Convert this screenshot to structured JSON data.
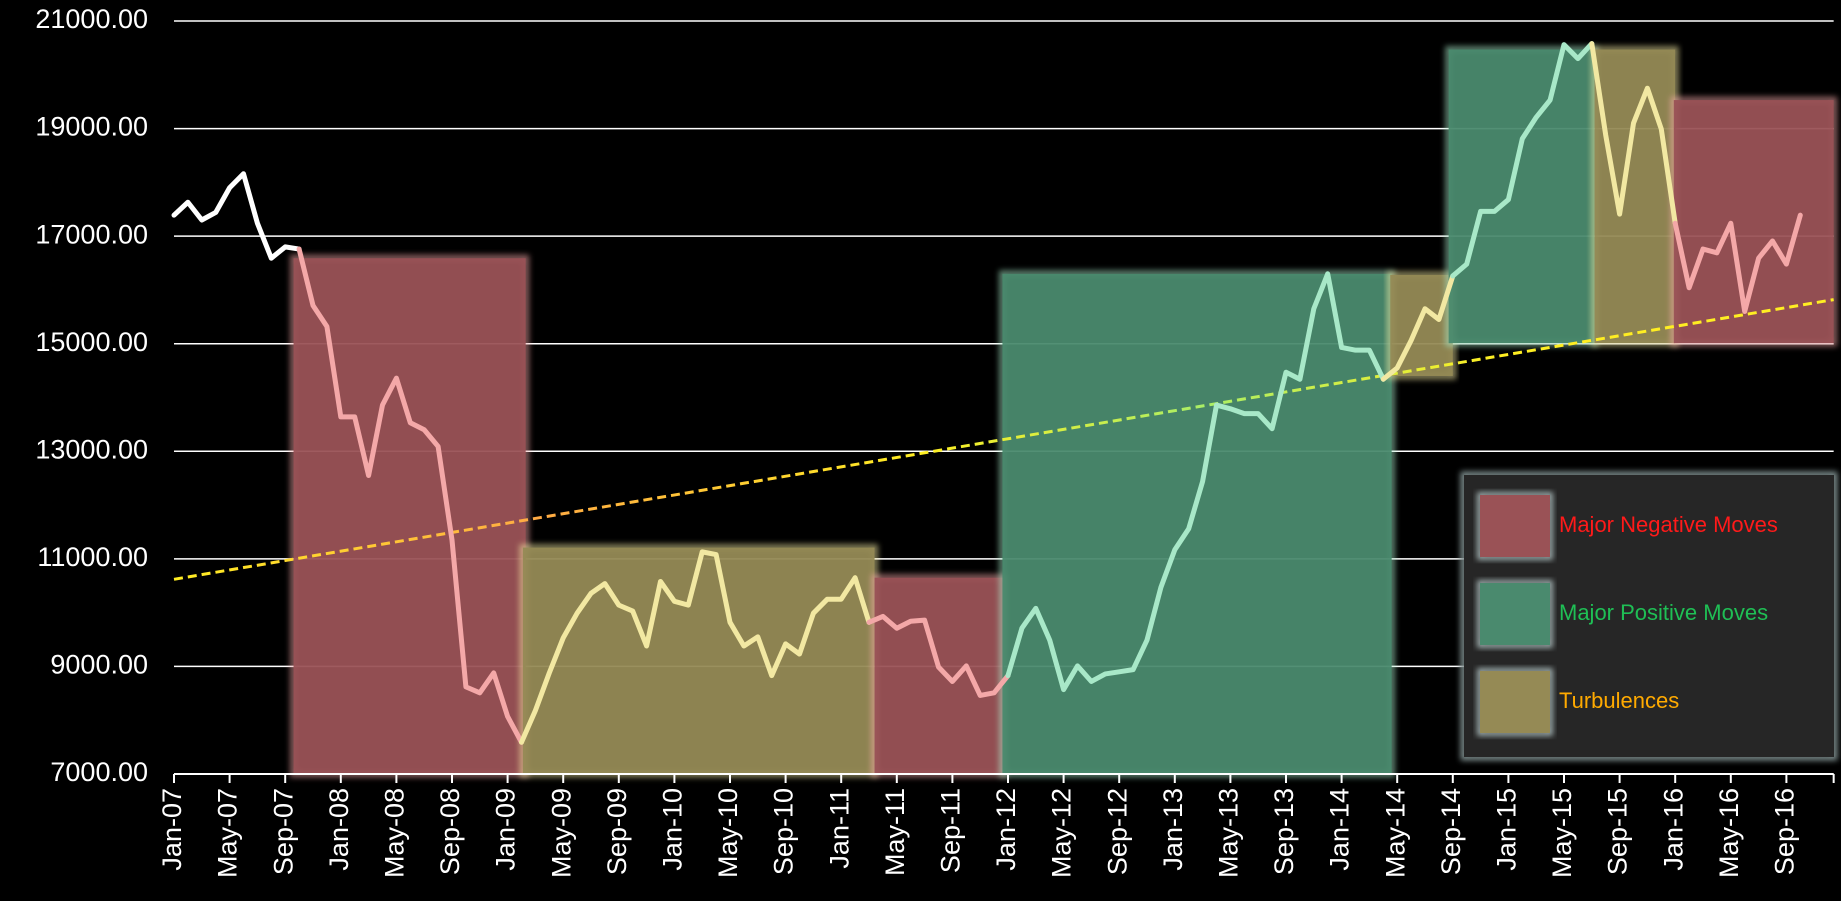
{
  "chart_data": {
    "type": "line",
    "categories": [
      "Jan-07",
      null,
      null,
      null,
      "May-07",
      null,
      null,
      null,
      "Sep-07",
      null,
      null,
      null,
      "Jan-08",
      null,
      null,
      null,
      "May-08",
      null,
      null,
      null,
      "Sep-08",
      null,
      null,
      null,
      "Jan-09",
      null,
      null,
      null,
      "May-09",
      null,
      null,
      null,
      "Sep-09",
      null,
      null,
      null,
      "Jan-10",
      null,
      null,
      null,
      "May-10",
      null,
      null,
      null,
      "Sep-10",
      null,
      null,
      null,
      "Jan-11",
      null,
      null,
      null,
      "May-11",
      null,
      null,
      null,
      "Sep-11",
      null,
      null,
      null,
      "Jan-12",
      null,
      null,
      null,
      "May-12",
      null,
      null,
      null,
      "Sep-12",
      null,
      null,
      null,
      "Jan-13",
      null,
      null,
      null,
      "May-13",
      null,
      null,
      null,
      "Sep-13",
      null,
      null,
      null,
      "Jan-14",
      null,
      null,
      null,
      "May-14",
      null,
      null,
      null,
      "Sep-14",
      null,
      null,
      null,
      "Jan-15",
      null,
      null,
      null,
      "May-15",
      null,
      null,
      null,
      "Sep-15",
      null,
      null,
      null,
      "Jan-16",
      null,
      null,
      null,
      "May-16",
      null,
      null,
      null,
      "Sep-16",
      null,
      null,
      null
    ],
    "series": [
      {
        "color": "#ffffff",
        "values": [
          17390,
          17630,
          17300,
          17440,
          17900,
          18160,
          17240,
          16590,
          16800,
          16760,
          15710,
          15320,
          13640,
          13640,
          12550,
          13860,
          14360,
          13530,
          13400,
          13090,
          11350,
          8620,
          8510,
          8880,
          8070,
          7590,
          8180,
          8880,
          9530,
          9990,
          10360,
          10540,
          10140,
          10030,
          9380,
          10580,
          10210,
          10140,
          11130,
          11080,
          9820,
          9380,
          9550,
          8830,
          9420,
          9230,
          9990,
          10250,
          10250,
          10650,
          9820,
          9930,
          9710,
          9840,
          9860,
          8990,
          8720,
          9010,
          8460,
          8510,
          8830,
          9710,
          10080,
          9490,
          8570,
          9010,
          8720,
          8860,
          8900,
          8940,
          9490,
          10470,
          11170,
          11560,
          12440,
          13860,
          13790,
          13700,
          13700,
          13420,
          14470,
          14340,
          15650,
          16300,
          14930,
          14880,
          14880,
          14340,
          14550,
          15060,
          15650,
          15450,
          16260,
          16480,
          17460,
          17460,
          17680,
          18810,
          19210,
          19530,
          20560,
          20300,
          20580,
          18880,
          17410,
          19100,
          19750,
          18990,
          17240,
          16040,
          16760,
          16690,
          17240,
          15600,
          16590,
          16910,
          16480,
          17390,
          null,
          null
        ]
      }
    ],
    "regimes": [
      {
        "name": "Major Negative Moves",
        "fill": "#9a5256",
        "line": "#f4a8a8",
        "text_color": "#ff1a1a"
      },
      {
        "name": "Major Positive Moves",
        "fill": "#4a8a6e",
        "line": "#a8e8c8",
        "text_color": "#1fbf55"
      },
      {
        "name": "Turbulences",
        "fill": "#958a55",
        "line": "#f2e8a2",
        "text_color": "#ffaa00"
      }
    ],
    "regions": [
      {
        "regime": 0,
        "start": 8.6,
        "end": 25.3,
        "ymin": 7000,
        "ymax": 16590
      },
      {
        "regime": 2,
        "start": 25.1,
        "end": 50.4,
        "ymin": 7000,
        "ymax": 11210
      },
      {
        "regime": 0,
        "start": 50.4,
        "end": 59.7,
        "ymin": 7000,
        "ymax": 10650
      },
      {
        "regime": 1,
        "start": 59.6,
        "end": 87.6,
        "ymin": 7000,
        "ymax": 16300
      },
      {
        "regime": 2,
        "start": 87.5,
        "end": 92.0,
        "ymin": 14400,
        "ymax": 16280
      },
      {
        "regime": 1,
        "start": 91.7,
        "end": 102.2,
        "ymin": 15010,
        "ymax": 20470
      },
      {
        "regime": 2,
        "start": 102.2,
        "end": 108.0,
        "ymin": 15010,
        "ymax": 20470
      },
      {
        "regime": 0,
        "start": 107.9,
        "end": 119.4,
        "ymin": 15010,
        "ymax": 19530
      }
    ],
    "trend": {
      "start": 10620,
      "end": 15820
    },
    "ylim": [
      7000,
      21000
    ],
    "yticks": [
      {
        "value": 7000,
        "label": "7000.00"
      },
      {
        "value": 9000,
        "label": "9000.00"
      },
      {
        "value": 11000,
        "label": "11000.00"
      },
      {
        "value": 13000,
        "label": "13000.00"
      },
      {
        "value": 15000,
        "label": "15000.00"
      },
      {
        "value": 17000,
        "label": "17000.00"
      },
      {
        "value": 19000,
        "label": "19000.00"
      },
      {
        "value": 21000,
        "label": "21000.00"
      }
    ],
    "grid": true
  }
}
